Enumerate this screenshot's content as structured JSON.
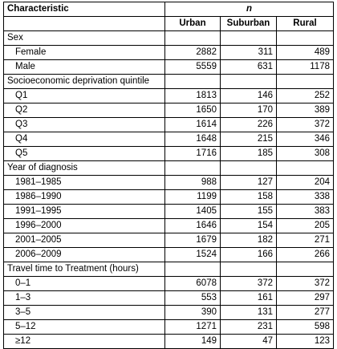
{
  "header": {
    "characteristic": "Characteristic",
    "n": "n",
    "columns": [
      "Urban",
      "Suburban",
      "Rural"
    ]
  },
  "sections": [
    {
      "title": "Sex",
      "rows": [
        {
          "label": "Female",
          "values": [
            "2882",
            "311",
            "489"
          ]
        },
        {
          "label": "Male",
          "values": [
            "5559",
            "631",
            "1178"
          ]
        }
      ]
    },
    {
      "title": "Socioeconomic deprivation quintile",
      "rows": [
        {
          "label": "Q1",
          "values": [
            "1813",
            "146",
            "252"
          ]
        },
        {
          "label": "Q2",
          "values": [
            "1650",
            "170",
            "389"
          ]
        },
        {
          "label": "Q3",
          "values": [
            "1614",
            "226",
            "372"
          ]
        },
        {
          "label": "Q4",
          "values": [
            "1648",
            "215",
            "346"
          ]
        },
        {
          "label": "Q5",
          "values": [
            "1716",
            "185",
            "308"
          ]
        }
      ]
    },
    {
      "title": "Year of diagnosis",
      "rows": [
        {
          "label": "1981–1985",
          "values": [
            "988",
            "127",
            "204"
          ]
        },
        {
          "label": "1986–1990",
          "values": [
            "1199",
            "158",
            "338"
          ]
        },
        {
          "label": "1991–1995",
          "values": [
            "1405",
            "155",
            "383"
          ]
        },
        {
          "label": "1996–2000",
          "values": [
            "1646",
            "154",
            "205"
          ]
        },
        {
          "label": "2001–2005",
          "values": [
            "1679",
            "182",
            "271"
          ]
        },
        {
          "label": "2006–2009",
          "values": [
            "1524",
            "166",
            "266"
          ]
        }
      ]
    },
    {
      "title": "Travel time to Treatment (hours)",
      "rows": [
        {
          "label": "0–1",
          "values": [
            "6078",
            "372",
            "372"
          ]
        },
        {
          "label": "1–3",
          "values": [
            "553",
            "161",
            "297"
          ]
        },
        {
          "label": "3–5",
          "values": [
            "390",
            "131",
            "277"
          ]
        },
        {
          "label": "5–12",
          "values": [
            "1271",
            "231",
            "598"
          ]
        },
        {
          "label": "≥12",
          "values": [
            "149",
            "47",
            "123"
          ]
        }
      ]
    }
  ]
}
